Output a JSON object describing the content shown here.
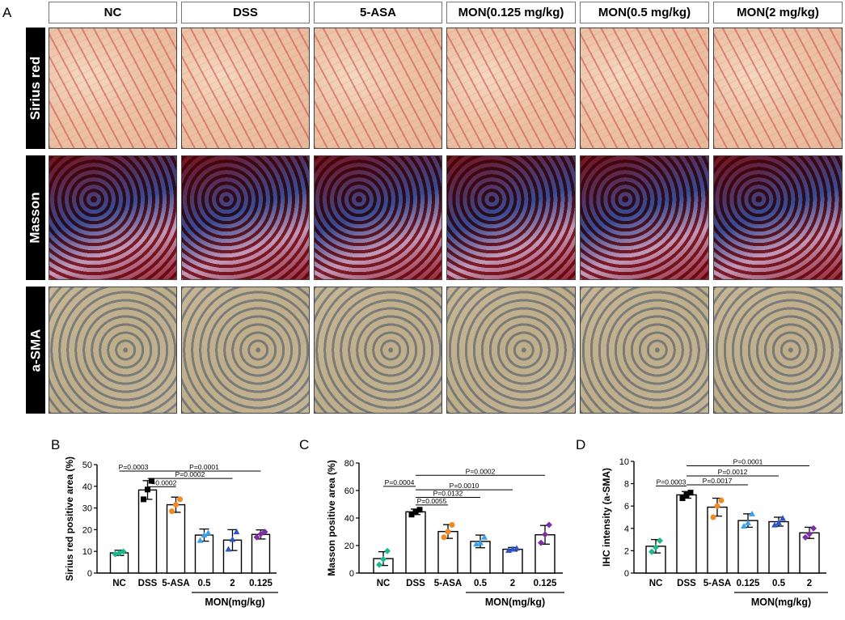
{
  "figure": {
    "panel_a_letter": "A",
    "column_headers": [
      "NC",
      "DSS",
      "5-ASA",
      "MON(0.125 mg/kg)",
      "MON(0.5 mg/kg)",
      "MON(2 mg/kg)"
    ],
    "row_headers": [
      "Sirius red",
      "Masson",
      "a-SMA"
    ]
  },
  "chart_data": [
    {
      "panel": "B",
      "type": "bar",
      "ylabel": "Sirius red positive area (%)",
      "ylim": [
        0,
        50
      ],
      "yticks": [
        "0",
        "10",
        "20",
        "30",
        "40",
        "50"
      ],
      "categories": [
        "NC",
        "DSS",
        "5-ASA",
        "0.5",
        "2",
        "0.125"
      ],
      "group_label": "MON(mg/kg)",
      "values": [
        9.3,
        38.3,
        31.5,
        17.5,
        15.2,
        17.8
      ],
      "errors": [
        1.2,
        4.3,
        3.5,
        2.8,
        4.8,
        2.1
      ],
      "points": [
        [
          8.7,
          9.2,
          9.9
        ],
        [
          34,
          38.5,
          42.5
        ],
        [
          28.5,
          31.5,
          34
        ],
        [
          15,
          17.5,
          18.5
        ],
        [
          11,
          15.5,
          19
        ],
        [
          16.5,
          18,
          19
        ]
      ],
      "point_colors": [
        "#1db88e",
        "#000000",
        "#f08a24",
        "#3aa0e8",
        "#2d55c8",
        "#7b2fa3"
      ],
      "comparisons": [
        {
          "label": "P=0.0003",
          "from": 0,
          "to": 1,
          "y": 47
        },
        {
          "label": "P=0.0002",
          "from": 1,
          "to": 2,
          "y": 39.8
        },
        {
          "label": "P=0.0002",
          "from": 1,
          "to": 4,
          "y": 43.6
        },
        {
          "label": "P=0.0001",
          "from": 1,
          "to": 5,
          "y": 47
        }
      ]
    },
    {
      "panel": "C",
      "type": "bar",
      "ylabel": "Masson positive area (%)",
      "ylim": [
        0,
        80
      ],
      "yticks": [
        "0",
        "20",
        "40",
        "60",
        "80"
      ],
      "categories": [
        "NC",
        "DSS",
        "5-ASA",
        "0.5",
        "2",
        "0.125"
      ],
      "group_label": "MON(mg/kg)",
      "values": [
        10.5,
        44.5,
        30.2,
        23.0,
        17.3,
        27.8
      ],
      "errors": [
        5.0,
        2.0,
        5.0,
        4.6,
        1.3,
        6.8
      ],
      "points": [
        [
          6,
          10,
          16
        ],
        [
          42.5,
          44.5,
          46
        ],
        [
          26,
          30,
          35
        ],
        [
          21,
          22,
          26
        ],
        [
          16.5,
          17.5,
          18
        ],
        [
          22,
          28,
          35
        ]
      ],
      "point_colors": [
        "#1db88e",
        "#000000",
        "#f08a24",
        "#3aa0e8",
        "#2d55c8",
        "#7b2fa3"
      ],
      "comparisons": [
        {
          "label": "P=0.0004",
          "from": 0,
          "to": 1,
          "y": 63
        },
        {
          "label": "P=0.0055",
          "from": 1,
          "to": 2,
          "y": 49.5
        },
        {
          "label": "P=0.0132",
          "from": 1,
          "to": 3,
          "y": 55
        },
        {
          "label": "P=0.0010",
          "from": 1,
          "to": 4,
          "y": 60.5
        },
        {
          "label": "P=0.0002",
          "from": 1,
          "to": 5,
          "y": 71
        }
      ]
    },
    {
      "panel": "D",
      "type": "bar",
      "ylabel": "IHC intensity (a-SMA)",
      "ylim": [
        0,
        10
      ],
      "yticks": [
        "0",
        "2",
        "4",
        "6",
        "8",
        "10"
      ],
      "categories": [
        "NC",
        "DSS",
        "5-ASA",
        "0.125",
        "0.5",
        "2"
      ],
      "group_label": "MON(mg/kg)",
      "values": [
        2.4,
        7.0,
        5.9,
        4.7,
        4.6,
        3.6
      ],
      "errors": [
        0.6,
        0.3,
        0.8,
        0.6,
        0.4,
        0.5
      ],
      "points": [
        [
          1.9,
          2.3,
          2.9
        ],
        [
          6.7,
          7.0,
          7.2
        ],
        [
          5.0,
          6.0,
          6.5
        ],
        [
          4.2,
          4.5,
          5.3
        ],
        [
          4.3,
          4.5,
          4.9
        ],
        [
          3.2,
          3.5,
          4.0
        ]
      ],
      "point_colors": [
        "#1db88e",
        "#000000",
        "#f08a24",
        "#3aa0e8",
        "#2d55c8",
        "#7b2fa3"
      ],
      "comparisons": [
        {
          "label": "P=0.0003",
          "from": 0,
          "to": 1,
          "y": 7.8
        },
        {
          "label": "P=0.0017",
          "from": 1,
          "to": 3,
          "y": 7.9
        },
        {
          "label": "P=0.0012",
          "from": 1,
          "to": 4,
          "y": 8.7
        },
        {
          "label": "P=0.0001",
          "from": 1,
          "to": 5,
          "y": 9.6
        }
      ]
    }
  ]
}
